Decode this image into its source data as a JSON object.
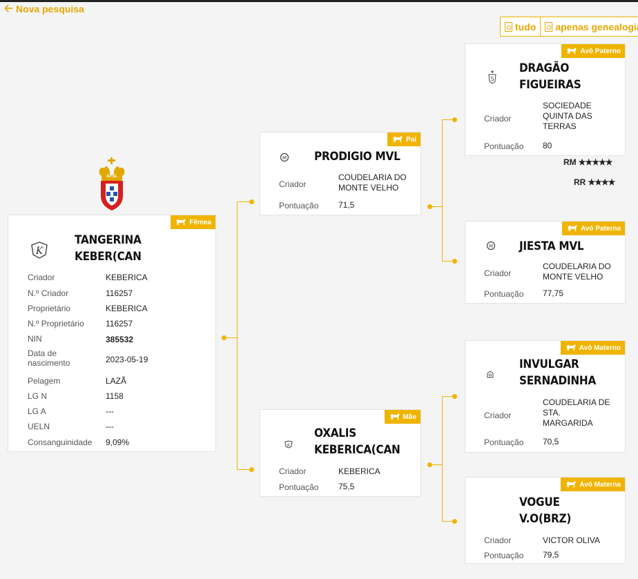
{
  "nav": {
    "back_label": "Nova pesquisa"
  },
  "pdf": {
    "all_label": "tudo",
    "genealogy_label": "apenas genealogia"
  },
  "association": {
    "emblem_text": "APSL"
  },
  "subject": {
    "badge": "Fêmea",
    "name_line1": "TANGERINA",
    "name_line2": "KEBER(CAN",
    "fields": [
      {
        "label": "Criador",
        "value": "KEBERICA"
      },
      {
        "label": "N.º Criador",
        "value": "116257"
      },
      {
        "label": "Proprietário",
        "value": "KEBERICA"
      },
      {
        "label": "N.º Proprietário",
        "value": "116257"
      },
      {
        "label": "NIN",
        "value": "385532"
      },
      {
        "label": "Data de nascimento",
        "value": "2023-05-19"
      },
      {
        "label": "Pelagem",
        "value": "LAZÃ"
      },
      {
        "label": "LG N",
        "value": "1158"
      },
      {
        "label": "LG A",
        "value": "---"
      },
      {
        "label": "UELN",
        "value": "---"
      },
      {
        "label": "Consanguinidade",
        "value": "9,09%"
      }
    ]
  },
  "sire": {
    "badge": "Pai",
    "name_line1": "PRODIGIO MVL",
    "criador_label": "Criador",
    "criador": "COUDELARIA DO MONTE VELHO",
    "pontuacao_label": "Pontuação",
    "pontuacao": "71,5"
  },
  "dam": {
    "badge": "Mãe",
    "name_line1": "OXALIS",
    "name_line2": "KEBERICA(CAN",
    "criador_label": "Criador",
    "criador": "KEBERICA",
    "pontuacao_label": "Pontuação",
    "pontuacao": "75,5"
  },
  "pat_grandsire": {
    "badge": "Avô Paterno",
    "name_line1": "DRAGÃO",
    "name_line2": "FIGUEIRAS",
    "criador_label": "Criador",
    "criador": "SOCIEDADE QUINTA DAS TERRAS",
    "pontuacao_label": "Pontuação",
    "pontuacao": "80",
    "rm_label": "RM",
    "rm_stars": 5,
    "rr_label": "RR",
    "rr_stars": 4
  },
  "pat_granddam": {
    "badge": "Avó Paterna",
    "name_line1": "JIESTA MVL",
    "criador_label": "Criador",
    "criador": "COUDELARIA DO MONTE VELHO",
    "pontuacao_label": "Pontuação",
    "pontuacao": "77,75"
  },
  "mat_grandsire": {
    "badge": "Avô Materno",
    "name_line1": "INVULGAR",
    "name_line2": "SERNADINHA",
    "criador_label": "Criador",
    "criador": "COUDELARIA DE STA. MARGARIDA",
    "pontuacao_label": "Pontuação",
    "pontuacao": "70,5"
  },
  "mat_granddam": {
    "badge": "Avó Materna",
    "name_line1": "VOGUE",
    "name_line2": "V.O(BRZ)",
    "criador_label": "Criador",
    "criador": "VICTOR OLIVA",
    "pontuacao_label": "Pontuação",
    "pontuacao": "79,5"
  },
  "colors": {
    "accent": "#f0b400",
    "link": "#e8a600"
  }
}
